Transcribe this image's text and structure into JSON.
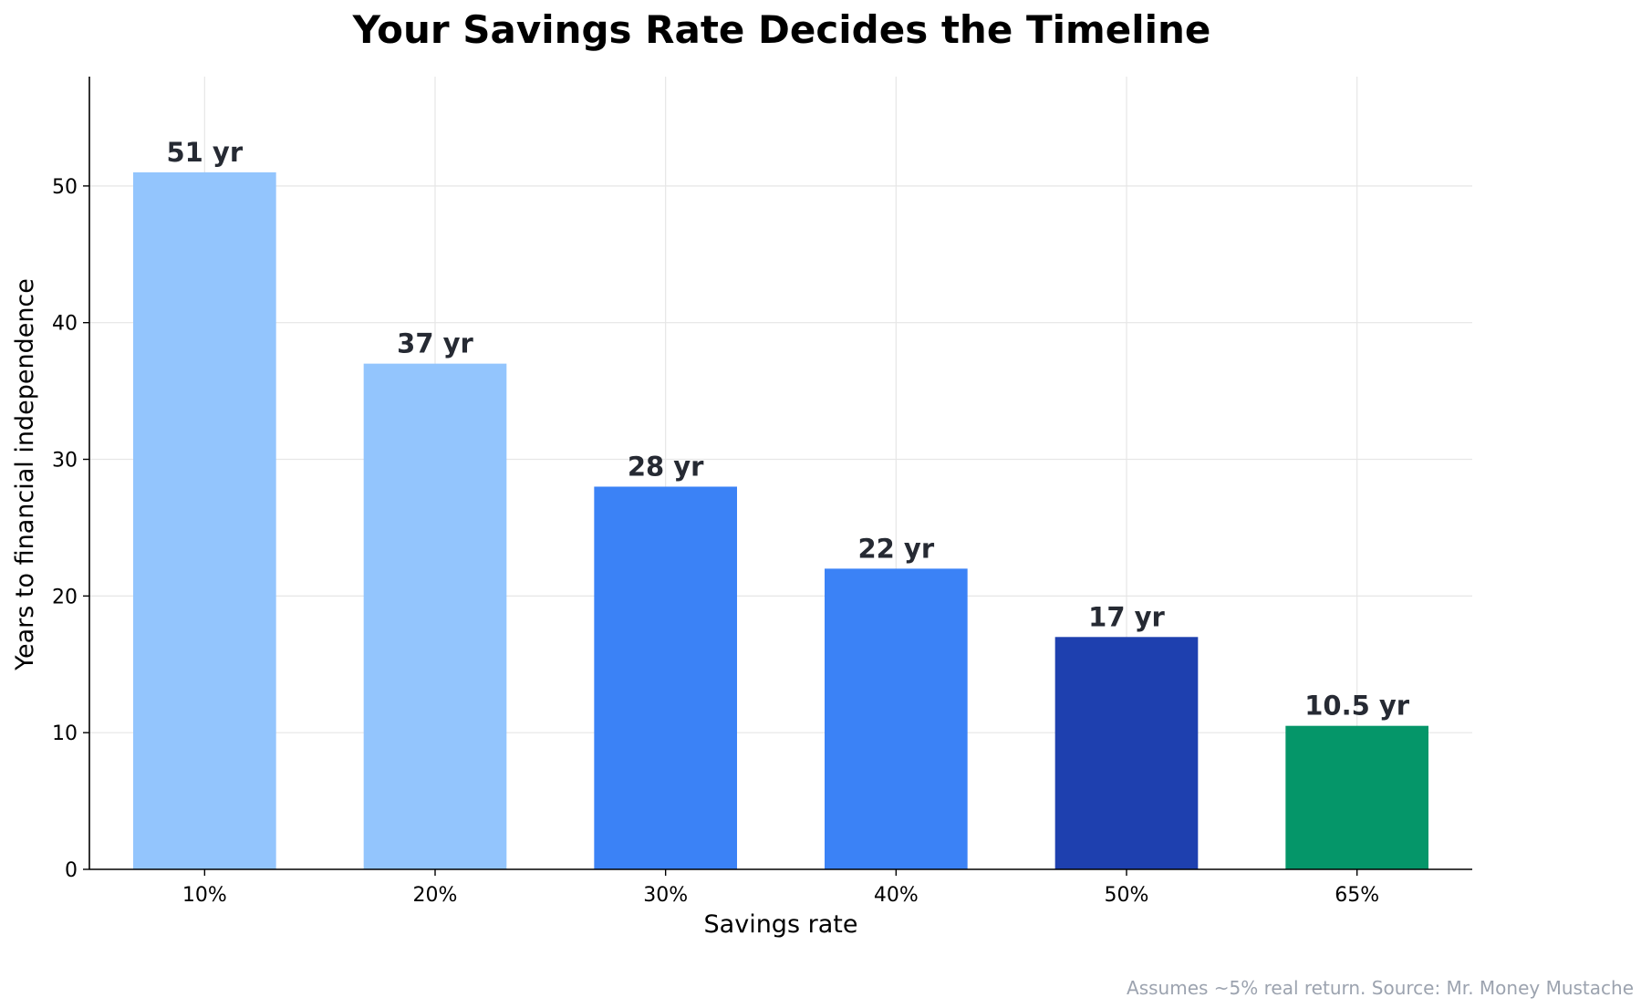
{
  "chart_data": {
    "type": "bar",
    "title": "Your Savings Rate Decides the Timeline",
    "xlabel": "Savings rate",
    "ylabel": "Years to financial independence",
    "categories": [
      "10%",
      "20%",
      "30%",
      "40%",
      "50%",
      "65%"
    ],
    "values": [
      51,
      37,
      28,
      22,
      17,
      10.5
    ],
    "data_labels": [
      "51 yr",
      "37 yr",
      "28 yr",
      "22 yr",
      "17 yr",
      "10.5 yr"
    ],
    "bar_colors": [
      "#93c5fd",
      "#93c5fd",
      "#3b82f6",
      "#3b82f6",
      "#1e40af",
      "#059669"
    ],
    "ylim": [
      0,
      58
    ],
    "yticks": [
      0,
      10,
      20,
      30,
      40,
      50
    ],
    "grid": true,
    "footnote": "Assumes ~5% real return. Source: Mr. Money Mustache"
  }
}
